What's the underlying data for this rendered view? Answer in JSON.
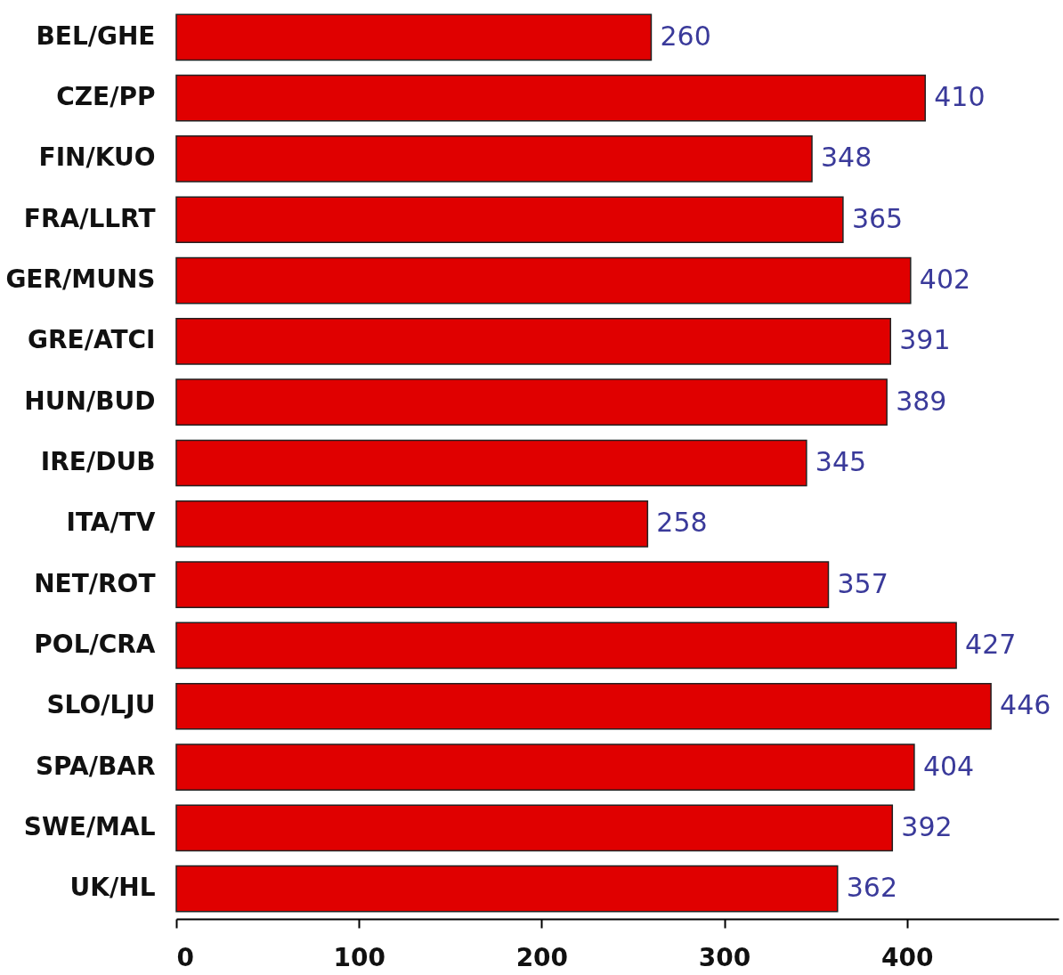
{
  "chart_data": {
    "type": "bar",
    "orientation": "horizontal",
    "categories": [
      "BEL/GHE",
      "CZE/PP",
      "FIN/KUO",
      "FRA/LLRT",
      "GER/MUNS",
      "GRE/ATCI",
      "HUN/BUD",
      "IRE/DUB",
      "ITA/TV",
      "NET/ROT",
      "POL/CRA",
      "SLO/LJU",
      "SPA/BAR",
      "SWE/MAL",
      "UK/HL"
    ],
    "values": [
      260,
      410,
      348,
      365,
      402,
      391,
      389,
      345,
      258,
      357,
      427,
      446,
      404,
      392,
      362
    ],
    "color": "#e00000",
    "xlim": [
      0,
      483
    ],
    "xticks": [
      0,
      100,
      200,
      300,
      400
    ],
    "data_labels": true,
    "grid": false
  }
}
